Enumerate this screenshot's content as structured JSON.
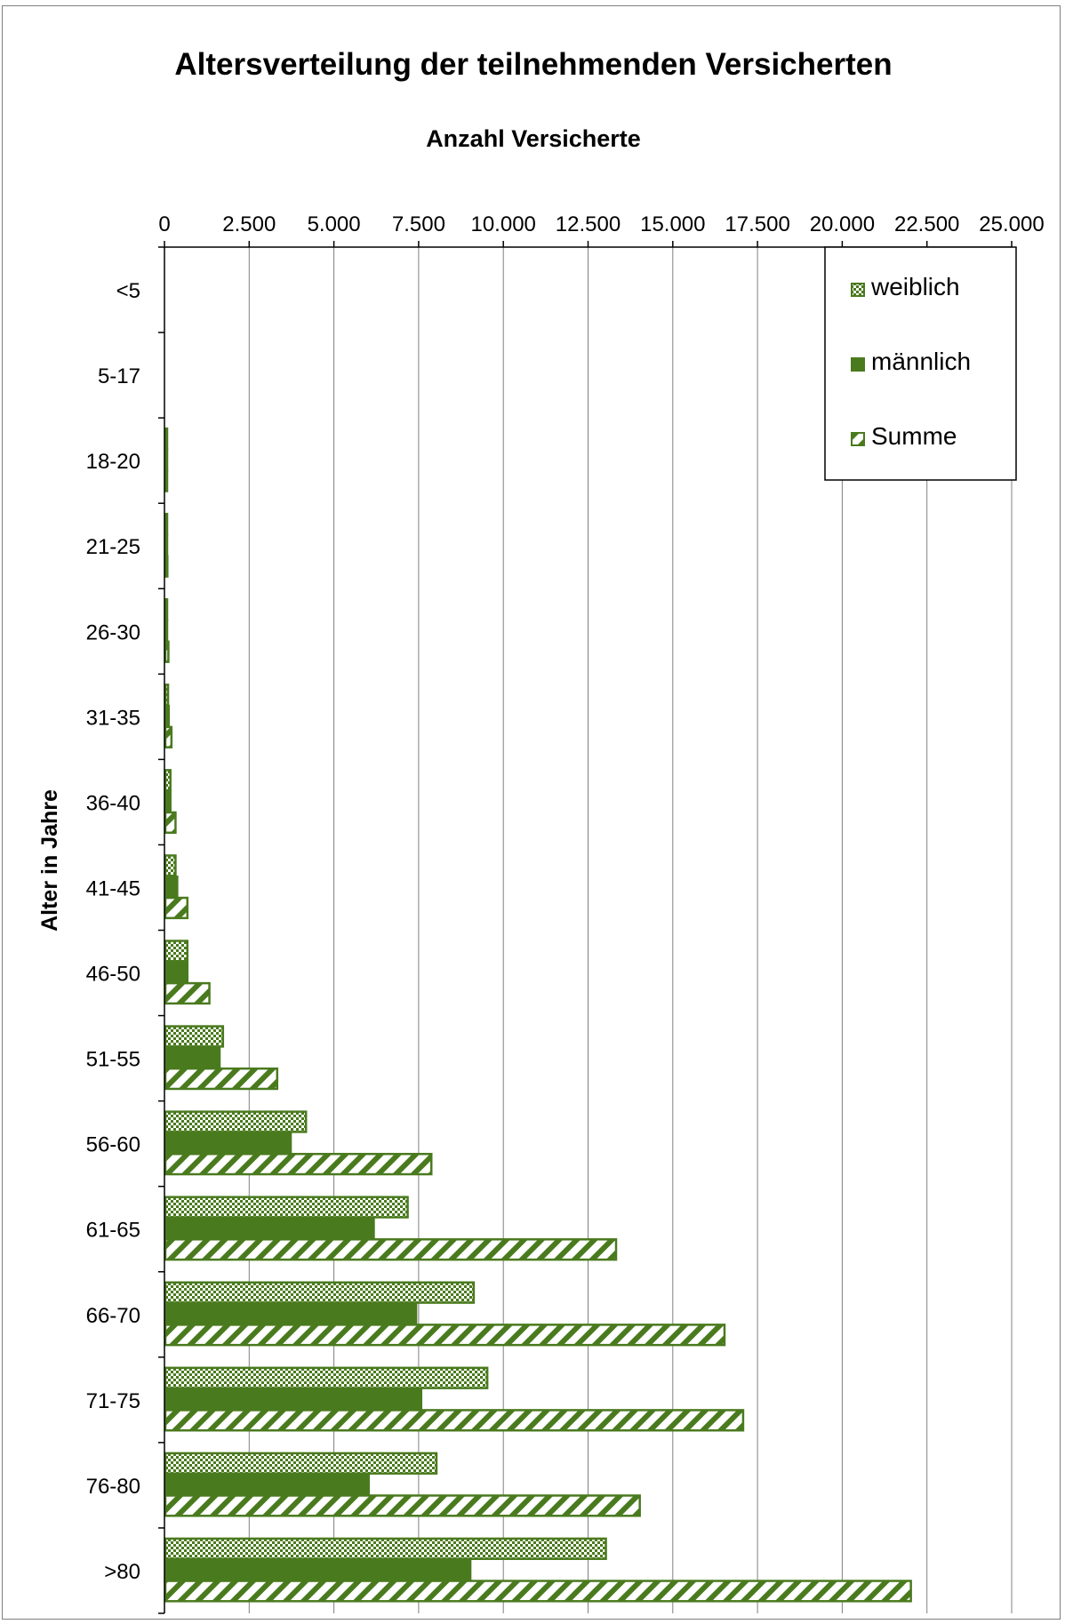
{
  "colors": {
    "series": "#4a7a1e",
    "frame": "#7f7f7f",
    "grid": "#808080",
    "axis": "#000000"
  },
  "chart_data": {
    "type": "bar",
    "orientation": "horizontal",
    "title": "Altersverteilung der teilnehmenden Versicherten",
    "xlabel": "Anzahl Versicherte",
    "ylabel": "Alter in Jahre",
    "xlim": [
      0,
      25000
    ],
    "x_ticks": [
      "0",
      "2.500",
      "5.000",
      "7.500",
      "10.000",
      "12.500",
      "15.000",
      "17.500",
      "20.000",
      "22.500",
      "25.000"
    ],
    "x_axis_position": "top",
    "grid": true,
    "legend_position": "top-right",
    "categories": [
      "<5",
      "5-17",
      "18-20",
      "21-25",
      "26-30",
      "31-35",
      "36-40",
      "41-45",
      "46-50",
      "51-55",
      "56-60",
      "61-65",
      "66-70",
      "71-75",
      "76-80",
      ">80"
    ],
    "series": [
      {
        "name": "weiblich",
        "pattern": "checker",
        "values": [
          0,
          0,
          20,
          30,
          40,
          80,
          150,
          300,
          650,
          1700,
          4150,
          7150,
          9100,
          9500,
          8000,
          13000
        ]
      },
      {
        "name": "männlich",
        "pattern": "solid",
        "values": [
          0,
          0,
          20,
          30,
          50,
          100,
          150,
          350,
          650,
          1600,
          3700,
          6150,
          7400,
          7550,
          6000,
          9000
        ]
      },
      {
        "name": "Summe",
        "pattern": "diagonal",
        "values": [
          0,
          0,
          40,
          60,
          90,
          180,
          300,
          650,
          1300,
          3300,
          7850,
          13300,
          16500,
          17050,
          14000,
          22000
        ]
      }
    ]
  }
}
